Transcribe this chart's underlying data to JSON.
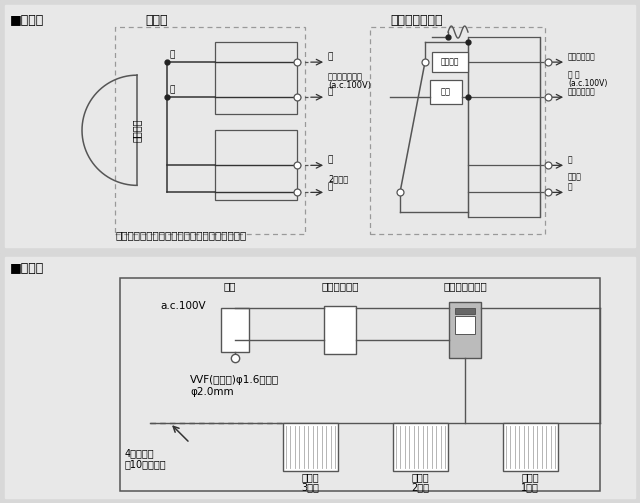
{
  "bg_color": "#d0d0d0",
  "top_bg": "#e8e8e8",
  "bot_bg": "#e8e8e8",
  "title1": "■結線図",
  "title2": "■配線図",
  "kanki_label": "換気扇",
  "timer_label": "タイムスイッチ",
  "motor_label": "モーター",
  "note": "破線部分の結線は現地にて施工してください。",
  "kuro": "黒",
  "shiro": "白",
  "2daime": "2台目へ",
  "timer_ac_l1": "タイムスイッチ",
  "timer_ac_l2": "(a.c.100V)",
  "kuro_katsu": "黒（活線侧）",
  "dengen_l1": "電 源",
  "dengen_l2": "(a.c.100V)",
  "shiro_setsuchi": "白（接地侧）",
  "shiro2": "白",
  "kanki_label2": "換気扇",
  "kuro2": "黒",
  "hyuzu": "ヒューズ",
  "jiro": "自路",
  "s2_dengen": "電源",
  "s2_roden": "漏電ブレーカ",
  "s2_timer": "タイムスイッチ",
  "ac100v": "a.c.100V",
  "vvf_l1": "VVF(市販品)φ1.6または",
  "vvf_l2": "φ2.0mm",
  "dai4_l1": "4台目以降",
  "dai4_l2": "（10台まで）",
  "kanki3_l1": "換気扇",
  "kanki3_l2": "3台目",
  "kanki2_l1": "換気扇",
  "kanki2_l2": "2台目",
  "kanki1_l1": "換気扇",
  "kanki1_l2": "1台目"
}
